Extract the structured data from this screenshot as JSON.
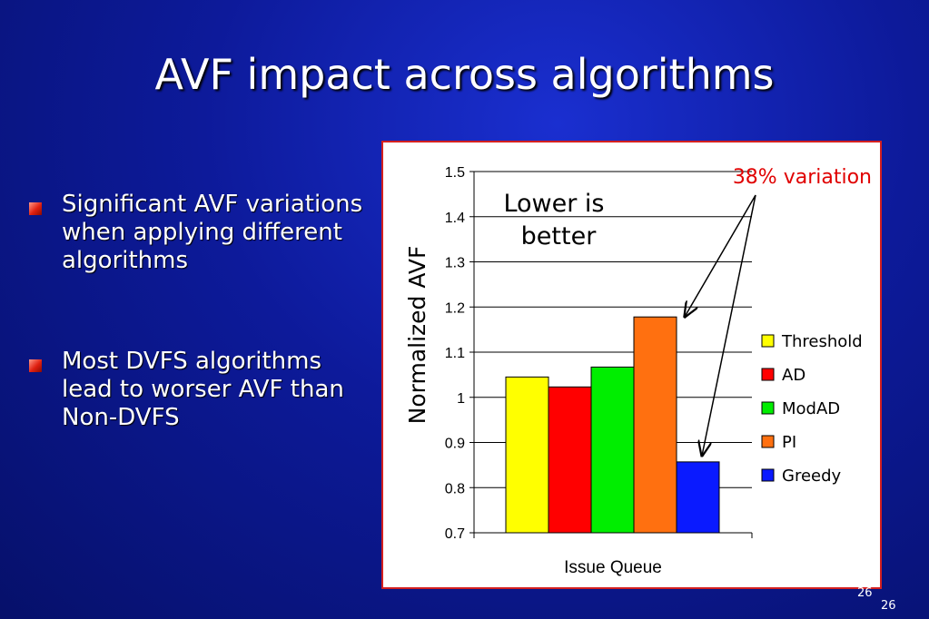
{
  "slide": {
    "title": "AVF impact across algorithms",
    "bullets": [
      "Significant AVF variations when applying different algorithms",
      "Most DVFS algorithms lead to worser AVF than Non-DVFS"
    ],
    "page_number": "26",
    "page_number_footer": "26"
  },
  "chart_data": {
    "type": "bar",
    "categories": [
      "Issue Queue"
    ],
    "series": [
      {
        "name": "Threshold",
        "values": [
          1.045
        ],
        "color": "#ffff00"
      },
      {
        "name": "AD",
        "values": [
          1.023
        ],
        "color": "#ff0000"
      },
      {
        "name": "ModAD",
        "values": [
          1.067
        ],
        "color": "#00ee00"
      },
      {
        "name": "PI",
        "values": [
          1.178
        ],
        "color": "#ff7010"
      },
      {
        "name": "Greedy",
        "values": [
          0.857
        ],
        "color": "#0a1aff"
      }
    ],
    "ylabel": "Normalized AVF",
    "xlabel": "Issue Queue",
    "ylim": [
      0.7,
      1.5
    ],
    "yticks": [
      "0.7",
      "0.8",
      "0.9",
      "1",
      "1.1",
      "1.2",
      "1.3",
      "1.4",
      "1.5"
    ],
    "grid": true,
    "legend": "right",
    "annotations": {
      "lower_is_better": [
        "Lower is",
        "better"
      ],
      "variation": "38% variation"
    }
  }
}
